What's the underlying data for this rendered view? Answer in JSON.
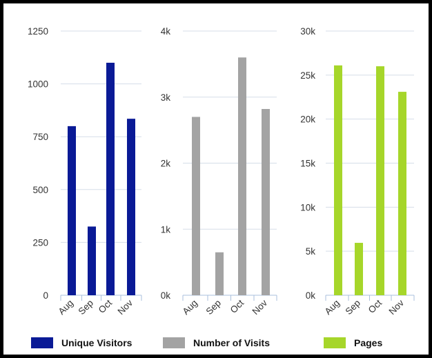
{
  "colors": {
    "unique_visitors": "#0a1a96",
    "number_of_visits": "#a3a3a3",
    "pages": "#a6d62a",
    "grid": "#d5dde8",
    "axis": "#a9bfdc"
  },
  "chart_data": [
    {
      "type": "bar",
      "categories": [
        "Aug",
        "Sep",
        "Oct",
        "Nov"
      ],
      "series": [
        {
          "name": "Unique Visitors",
          "values": [
            800,
            325,
            1100,
            835
          ]
        }
      ],
      "ylim": [
        0,
        1250
      ],
      "yticks": [
        0,
        250,
        500,
        750,
        1000,
        1250
      ],
      "ytick_labels": [
        "0",
        "250",
        "500",
        "750",
        "1000",
        "1250"
      ],
      "grid": true
    },
    {
      "type": "bar",
      "categories": [
        "Aug",
        "Sep",
        "Oct",
        "Nov"
      ],
      "series": [
        {
          "name": "Number of Visits",
          "values": [
            2700,
            650,
            3600,
            2820
          ]
        }
      ],
      "ylim": [
        0,
        4000
      ],
      "yticks": [
        0,
        1000,
        2000,
        3000,
        4000
      ],
      "ytick_labels": [
        "0k",
        "1k",
        "2k",
        "3k",
        "4k"
      ],
      "grid": true
    },
    {
      "type": "bar",
      "categories": [
        "Aug",
        "Sep",
        "Oct",
        "Nov"
      ],
      "series": [
        {
          "name": "Pages",
          "values": [
            26100,
            5950,
            26000,
            23100
          ]
        }
      ],
      "ylim": [
        0,
        30000
      ],
      "yticks": [
        0,
        5000,
        10000,
        15000,
        20000,
        25000,
        30000
      ],
      "ytick_labels": [
        "0k",
        "5k",
        "10k",
        "15k",
        "20k",
        "25k",
        "30k"
      ],
      "grid": true
    }
  ],
  "legend": {
    "placement": "bottom",
    "items": [
      {
        "label": "Unique Visitors",
        "color": "#0a1a96"
      },
      {
        "label": "Number of Visits",
        "color": "#a3a3a3"
      },
      {
        "label": "Pages",
        "color": "#a6d62a"
      }
    ]
  }
}
